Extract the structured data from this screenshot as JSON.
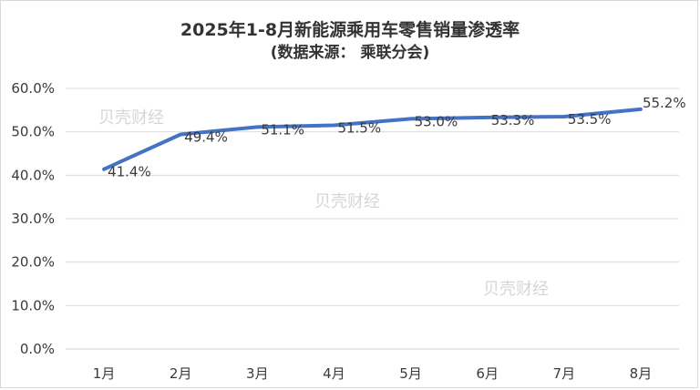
{
  "chart_data": {
    "type": "line",
    "title": "2025年1-8月新能源乘用车零售销量渗透率",
    "subtitle": "(数据来源： 乘联分会)",
    "categories": [
      "1月",
      "2月",
      "3月",
      "4月",
      "5月",
      "6月",
      "7月",
      "8月"
    ],
    "series": [
      {
        "values": [
          41.4,
          49.4,
          51.1,
          51.5,
          53.0,
          53.3,
          53.5,
          55.2
        ]
      }
    ],
    "data_labels": [
      "41.4%",
      "49.4%",
      "51.1%",
      "51.5%",
      "53.0%",
      "53.3%",
      "53.5%",
      "55.2%"
    ],
    "y_ticks": [
      0,
      10,
      20,
      30,
      40,
      50,
      60
    ],
    "y_tick_labels": [
      "0.0%",
      "10.0%",
      "20.0%",
      "30.0%",
      "40.0%",
      "50.0%",
      "60.0%"
    ],
    "ylim": [
      0,
      60
    ],
    "grid": true,
    "legend": "none",
    "line_color": "#4472c4",
    "watermark": "贝壳财经"
  }
}
